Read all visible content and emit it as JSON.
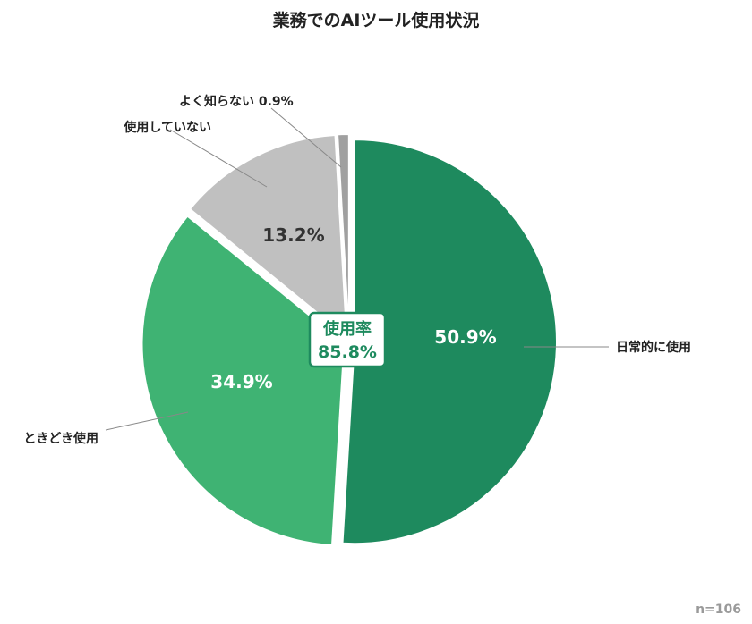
{
  "chart_data": {
    "type": "pie",
    "title": "業務でのAIツール使用状況",
    "slices": [
      {
        "label": "日常的に使用",
        "value": 50.9,
        "value_label": "50.9%",
        "color": "#1e8a5e"
      },
      {
        "label": "ときどき使用",
        "value": 34.9,
        "value_label": "34.9%",
        "color": "#3fb373"
      },
      {
        "label": "使用していない",
        "value": 13.2,
        "value_label": "13.2%",
        "color": "#c0c0c0"
      },
      {
        "label": "よく知らない",
        "value": 0.9,
        "value_label": "0.9%",
        "color": "#a0a0a0"
      }
    ],
    "center_badge": {
      "label": "使用率",
      "value": "85.8%",
      "color": "#1e8a5e"
    },
    "sample_size": "n=106"
  }
}
